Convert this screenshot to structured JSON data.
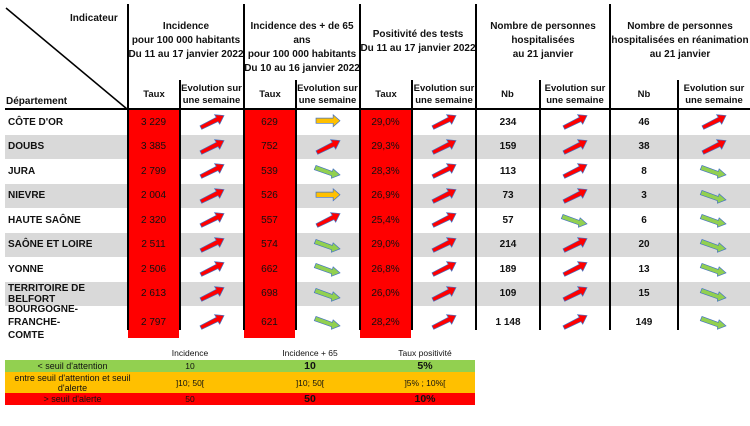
{
  "header": {
    "indicator_label": "Indicateur",
    "department_label": "Département",
    "groups": [
      {
        "title_lines": [
          "Incidence",
          "pour 100 000 habitants",
          "Du 11 au 17 janvier 2022"
        ],
        "col1": "Taux",
        "col2_lines": [
          "Evolution sur",
          "une semaine"
        ]
      },
      {
        "title_lines": [
          "Incidence des + de 65 ans",
          "pour 100 000 habitants",
          "Du 10 au 16 janvier 2022"
        ],
        "col1": "Taux",
        "col2_lines": [
          "Evolution sur",
          "une semaine"
        ]
      },
      {
        "title_lines": [
          "Positivité des tests",
          "Du 11 au 17 janvier 2022"
        ],
        "col1": "Taux",
        "col2_lines": [
          "Evolution sur",
          "une semaine"
        ]
      },
      {
        "title_lines": [
          "Nombre de personnes",
          "hospitalisées",
          "au 21 janvier"
        ],
        "col1": "Nb",
        "col2_lines": [
          "Evolution sur",
          "une semaine"
        ]
      },
      {
        "title_lines": [
          "Nombre de personnes",
          "hospitalisées en réanimation",
          "au 21 janvier"
        ],
        "col1": "Nb",
        "col2_lines": [
          "Evolution sur",
          "une semaine"
        ]
      }
    ]
  },
  "rows": [
    {
      "dept": "CÔTE D'OR",
      "incidence": "3 229",
      "inc_trend": "up",
      "inc65": "629",
      "inc65_trend": "flat",
      "positivity": "29,0%",
      "pos_trend": "up",
      "hosp": "234",
      "hosp_trend": "up",
      "icu": "46",
      "icu_trend": "up"
    },
    {
      "dept": "DOUBS",
      "incidence": "3 385",
      "inc_trend": "up",
      "inc65": "752",
      "inc65_trend": "up",
      "positivity": "29,3%",
      "pos_trend": "up",
      "hosp": "159",
      "hosp_trend": "up",
      "icu": "38",
      "icu_trend": "up"
    },
    {
      "dept": "JURA",
      "incidence": "2 799",
      "inc_trend": "up",
      "inc65": "539",
      "inc65_trend": "down",
      "positivity": "28,3%",
      "pos_trend": "up",
      "hosp": "113",
      "hosp_trend": "up",
      "icu": "8",
      "icu_trend": "down"
    },
    {
      "dept": "NIEVRE",
      "incidence": "2 004",
      "inc_trend": "up",
      "inc65": "526",
      "inc65_trend": "flat",
      "positivity": "26,9%",
      "pos_trend": "up",
      "hosp": "73",
      "hosp_trend": "up",
      "icu": "3",
      "icu_trend": "down"
    },
    {
      "dept": "HAUTE SAÔNE",
      "incidence": "2 320",
      "inc_trend": "up",
      "inc65": "557",
      "inc65_trend": "up",
      "positivity": "25,4%",
      "pos_trend": "up",
      "hosp": "57",
      "hosp_trend": "down",
      "icu": "6",
      "icu_trend": "down"
    },
    {
      "dept": "SAÔNE ET LOIRE",
      "incidence": "2 511",
      "inc_trend": "up",
      "inc65": "574",
      "inc65_trend": "down",
      "positivity": "29,0%",
      "pos_trend": "up",
      "hosp": "214",
      "hosp_trend": "up",
      "icu": "20",
      "icu_trend": "down"
    },
    {
      "dept": "YONNE",
      "incidence": "2 506",
      "inc_trend": "up",
      "inc65": "662",
      "inc65_trend": "down",
      "positivity": "26,8%",
      "pos_trend": "up",
      "hosp": "189",
      "hosp_trend": "up",
      "icu": "13",
      "icu_trend": "down"
    },
    {
      "dept": "TERRITOIRE DE BELFORT",
      "incidence": "2 613",
      "inc_trend": "up",
      "inc65": "698",
      "inc65_trend": "down",
      "positivity": "26,0%",
      "pos_trend": "up",
      "hosp": "109",
      "hosp_trend": "up",
      "icu": "15",
      "icu_trend": "down"
    },
    {
      "dept": "BOURGOGNE-FRANCHE-COMTE",
      "dept_lines": [
        "BOURGOGNE-FRANCHE-",
        "COMTE"
      ],
      "incidence": "2 797",
      "inc_trend": "up",
      "inc65": "621",
      "inc65_trend": "down",
      "positivity": "28,2%",
      "pos_trend": "up",
      "hosp": "1 148",
      "hosp_trend": "up",
      "icu": "149",
      "icu_trend": "down"
    }
  ],
  "legend": {
    "headers": [
      "Incidence",
      "Incidence + 65",
      "Taux positivité"
    ],
    "rows": [
      {
        "label_lines": [
          "< seuil d'attention"
        ],
        "values": [
          "10",
          "10",
          "5%"
        ],
        "color": "#92d050"
      },
      {
        "label_lines": [
          "entre seuil d'attention et seuil",
          "d'alerte"
        ],
        "values": [
          "]10; 50[",
          "]10; 50[",
          "]5% ; 10%["
        ],
        "color": "#ffc000"
      },
      {
        "label_lines": [
          "> seuil d'alerte"
        ],
        "values": [
          "50",
          "50",
          "10%"
        ],
        "color": "#ff0000"
      }
    ]
  },
  "colors": {
    "alert_red": "#ff0000",
    "row_shade": "#d9d9d9",
    "arrow_up": "#ff0000",
    "arrow_flat": "#ffc000",
    "arrow_down": "#92d050",
    "arrow_outline": "#4472c4"
  }
}
